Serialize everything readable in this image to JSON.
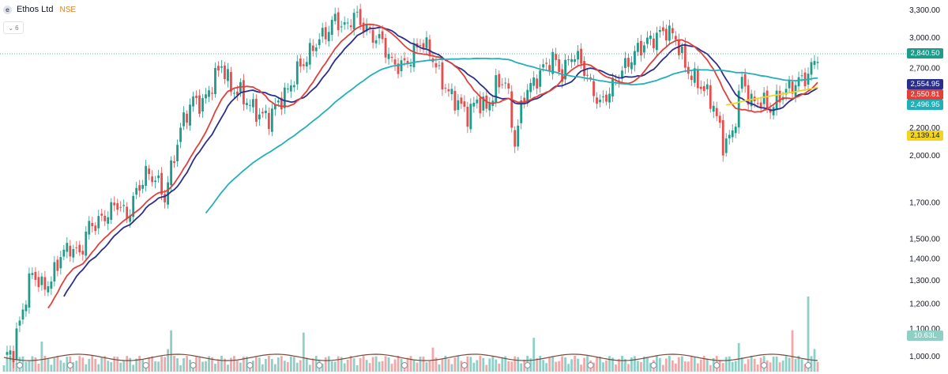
{
  "header": {
    "logo_glyph": "e",
    "symbol": "Ethos Ltd",
    "exchange": "NSE",
    "indicator_count": "6",
    "collapse_icon": "chevron-down-icon"
  },
  "chart_data": {
    "type": "candlestick",
    "scale": "log",
    "ylim": [
      950,
      3400
    ],
    "y_ticks": [
      "3,300.00",
      "3,000.00",
      "2,700.00",
      "2,200.00",
      "2,000.00",
      "1,700.00",
      "1,500.00",
      "1,400.00",
      "1,300.00",
      "1,200.00",
      "1,100.00",
      "1,000.00"
    ],
    "y_tick_values": [
      3300,
      3000,
      2700,
      2200,
      2000,
      1700,
      1500,
      1400,
      1300,
      1200,
      1100,
      1000
    ],
    "last_price": {
      "value": 2840.5,
      "label": "2,840.50",
      "color": "#1d9c8c"
    },
    "close_anchors": [
      [
        0,
        1000
      ],
      [
        3,
        1020
      ],
      [
        6,
        1180
      ],
      [
        9,
        1340
      ],
      [
        12,
        1270
      ],
      [
        15,
        1300
      ],
      [
        18,
        1420
      ],
      [
        21,
        1460
      ],
      [
        24,
        1420
      ],
      [
        27,
        1570
      ],
      [
        30,
        1590
      ],
      [
        33,
        1640
      ],
      [
        36,
        1700
      ],
      [
        39,
        1620
      ],
      [
        42,
        1760
      ],
      [
        45,
        1880
      ],
      [
        48,
        1850
      ],
      [
        51,
        1730
      ],
      [
        54,
        2000
      ],
      [
        57,
        2270
      ],
      [
        60,
        2420
      ],
      [
        63,
        2390
      ],
      [
        66,
        2560
      ],
      [
        69,
        2740
      ],
      [
        72,
        2520
      ],
      [
        75,
        2480
      ],
      [
        78,
        2380
      ],
      [
        81,
        2300
      ],
      [
        84,
        2280
      ],
      [
        87,
        2400
      ],
      [
        90,
        2500
      ],
      [
        93,
        2680
      ],
      [
        96,
        2800
      ],
      [
        99,
        2950
      ],
      [
        102,
        3050
      ],
      [
        105,
        3200
      ],
      [
        108,
        3100
      ],
      [
        111,
        3250
      ],
      [
        114,
        3130
      ],
      [
        117,
        3020
      ],
      [
        120,
        2960
      ],
      [
        123,
        2750
      ],
      [
        126,
        2720
      ],
      [
        129,
        2800
      ],
      [
        132,
        2960
      ],
      [
        135,
        2870
      ],
      [
        138,
        2640
      ],
      [
        141,
        2480
      ],
      [
        144,
        2400
      ],
      [
        147,
        2300
      ],
      [
        150,
        2420
      ],
      [
        153,
        2350
      ],
      [
        156,
        2540
      ],
      [
        159,
        2600
      ],
      [
        162,
        2080
      ],
      [
        165,
        2480
      ],
      [
        168,
        2570
      ],
      [
        171,
        2700
      ],
      [
        174,
        2800
      ],
      [
        177,
        2640
      ],
      [
        180,
        2840
      ],
      [
        183,
        2760
      ],
      [
        186,
        2550
      ],
      [
        189,
        2380
      ],
      [
        192,
        2500
      ],
      [
        195,
        2640
      ],
      [
        198,
        2760
      ],
      [
        201,
        2880
      ],
      [
        204,
        2960
      ],
      [
        207,
        3020
      ],
      [
        210,
        3080
      ],
      [
        213,
        3000
      ],
      [
        216,
        2720
      ],
      [
        219,
        2600
      ],
      [
        222,
        2510
      ],
      [
        225,
        2380
      ],
      [
        228,
        2080
      ],
      [
        231,
        2150
      ],
      [
        234,
        2600
      ],
      [
        237,
        2400
      ],
      [
        240,
        2420
      ],
      [
        243,
        2350
      ],
      [
        246,
        2450
      ],
      [
        249,
        2530
      ],
      [
        252,
        2580
      ],
      [
        255,
        2640
      ],
      [
        258,
        2840
      ]
    ],
    "volume_spikes": [
      [
        12,
        0.4
      ],
      [
        52,
        0.3
      ],
      [
        53,
        0.55
      ],
      [
        95,
        0.52
      ],
      [
        136,
        0.32
      ],
      [
        168,
        0.45
      ],
      [
        212,
        0.15
      ],
      [
        233,
        0.38
      ],
      [
        250,
        0.55
      ],
      [
        255,
        1.0
      ],
      [
        257,
        0.3
      ]
    ],
    "moving_averages": [
      {
        "name": "2,554.95",
        "color": "#2b2f8c",
        "period": 20
      },
      {
        "name": "2,550.81",
        "color": "#e2403b",
        "period": 15
      },
      {
        "name": "2,496.95",
        "color": "#22b0b8",
        "period": 65
      },
      {
        "name": "2,139.14",
        "color": "#f2d51e",
        "period": 230
      }
    ],
    "volume_label": "10.63L",
    "colors": {
      "up": "#1d9c8c",
      "down": "#e84d4d",
      "vol_up": "#8fcfc6",
      "vol_down": "#f1a8a8"
    }
  }
}
